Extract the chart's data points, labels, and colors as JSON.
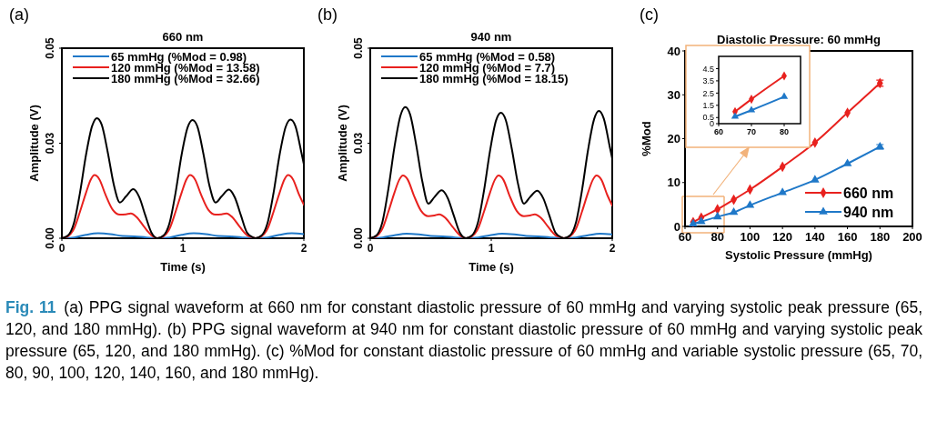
{
  "chart_data": [
    {
      "type": "line",
      "title": "660 nm",
      "xlabel": "Time (s)",
      "ylabel": "Amplitude (V)",
      "annotations": [
        "(a)"
      ],
      "xlim": [
        0,
        2
      ],
      "xticks": [
        0,
        1,
        2
      ],
      "ylim": [
        0,
        0.05
      ],
      "yticks": [
        {
          "value": 0,
          "label": "0.00"
        },
        {
          "value": 0.025,
          "label": "0.03"
        },
        {
          "value": 0.05,
          "label": "0.05"
        }
      ],
      "legend": "top",
      "series": [
        {
          "name": "65 mmHg (%Mod = 0.98)",
          "color": "#1f78c8",
          "x": [
            0,
            0.1,
            0.2,
            0.3,
            0.4,
            0.5,
            0.6,
            0.7,
            0.79,
            0.89,
            0.99,
            1.09,
            1.19,
            1.29,
            1.39,
            1.49,
            1.6,
            1.7,
            1.8,
            1.9,
            2
          ],
          "values": [
            0,
            0.0002,
            0.0009,
            0.0013,
            0.0011,
            0.0006,
            0.0005,
            0.0002,
            0,
            0.0002,
            0.0009,
            0.0013,
            0.0011,
            0.0006,
            0.0005,
            0.0002,
            0,
            0.0002,
            0.0009,
            0.0013,
            0.0011
          ]
        },
        {
          "name": "120 mmHg (%Mod = 13.58)",
          "color": "#e8211e",
          "x": [
            0,
            0.05,
            0.1,
            0.15,
            0.2,
            0.24,
            0.27,
            0.31,
            0.36,
            0.42,
            0.48,
            0.53,
            0.57,
            0.62,
            0.68,
            0.74,
            0.79,
            0.84,
            0.89,
            0.94,
            0.99,
            1.03,
            1.06,
            1.1,
            1.15,
            1.21,
            1.27,
            1.32,
            1.36,
            1.41,
            1.47,
            1.53,
            1.58,
            1.6,
            1.65,
            1.7,
            1.75,
            1.8,
            1.84,
            1.87,
            1.91,
            1.96,
            2
          ],
          "values": [
            0,
            0.0005,
            0.0025,
            0.007,
            0.012,
            0.0155,
            0.0166,
            0.0155,
            0.0115,
            0.0075,
            0.0062,
            0.0063,
            0.0065,
            0.0055,
            0.003,
            0.0008,
            0,
            0.0005,
            0.0025,
            0.007,
            0.012,
            0.0155,
            0.0166,
            0.0155,
            0.0115,
            0.0075,
            0.0062,
            0.0063,
            0.0065,
            0.0055,
            0.003,
            0.0008,
            0.0002,
            0,
            0.0005,
            0.0025,
            0.007,
            0.012,
            0.0155,
            0.0166,
            0.0155,
            0.0115,
            0.0088
          ]
        },
        {
          "name": "180 mmHg (%Mod = 32.66)",
          "color": "#000000",
          "x": [
            0,
            0.05,
            0.1,
            0.15,
            0.2,
            0.25,
            0.29,
            0.33,
            0.38,
            0.43,
            0.48,
            0.53,
            0.59,
            0.64,
            0.69,
            0.74,
            0.79,
            0.84,
            0.89,
            0.94,
            0.99,
            1.04,
            1.08,
            1.12,
            1.17,
            1.22,
            1.27,
            1.32,
            1.38,
            1.43,
            1.48,
            1.53,
            1.58,
            1.6,
            1.65,
            1.7,
            1.75,
            1.8,
            1.85,
            1.89,
            1.93,
            1.98,
            2
          ],
          "values": [
            0,
            0.0007,
            0.004,
            0.012,
            0.022,
            0.0295,
            0.0316,
            0.0298,
            0.0225,
            0.014,
            0.0094,
            0.011,
            0.0129,
            0.0108,
            0.006,
            0.0015,
            0,
            0.0007,
            0.004,
            0.012,
            0.022,
            0.0292,
            0.0311,
            0.0294,
            0.0222,
            0.0138,
            0.0094,
            0.011,
            0.0128,
            0.0107,
            0.006,
            0.0015,
            0.0002,
            0,
            0.0007,
            0.004,
            0.012,
            0.022,
            0.0293,
            0.0312,
            0.0295,
            0.0225,
            0.0195
          ]
        }
      ]
    },
    {
      "type": "line",
      "title": "940 nm",
      "xlabel": "Time (s)",
      "ylabel": "Amplitude (V)",
      "annotations": [
        "(b)"
      ],
      "xlim": [
        0,
        2
      ],
      "xticks": [
        0,
        1,
        2
      ],
      "ylim": [
        0,
        0.05
      ],
      "yticks": [
        {
          "value": 0,
          "label": "0.00"
        },
        {
          "value": 0.025,
          "label": "0.03"
        },
        {
          "value": 0.05,
          "label": "0.05"
        }
      ],
      "legend": "top",
      "series": [
        {
          "name": "65 mmHg (%Mod = 0.58)",
          "color": "#1f78c8",
          "x": [
            0,
            0.1,
            0.2,
            0.3,
            0.4,
            0.5,
            0.6,
            0.7,
            0.79,
            0.89,
            0.99,
            1.09,
            1.19,
            1.29,
            1.39,
            1.49,
            1.6,
            1.7,
            1.8,
            1.9,
            2
          ],
          "values": [
            0,
            0.0002,
            0.0008,
            0.0012,
            0.001,
            0.0006,
            0.0005,
            0.0002,
            0,
            0.0002,
            0.0008,
            0.0012,
            0.001,
            0.0006,
            0.0005,
            0.0002,
            0,
            0.0002,
            0.0008,
            0.0012,
            0.001
          ]
        },
        {
          "name": "120 mmHg (%Mod = 7.7)",
          "color": "#e8211e",
          "x": [
            0,
            0.05,
            0.1,
            0.15,
            0.2,
            0.24,
            0.27,
            0.31,
            0.36,
            0.42,
            0.48,
            0.53,
            0.57,
            0.62,
            0.68,
            0.74,
            0.79,
            0.84,
            0.89,
            0.94,
            0.99,
            1.03,
            1.06,
            1.1,
            1.15,
            1.21,
            1.27,
            1.32,
            1.36,
            1.41,
            1.47,
            1.53,
            1.58,
            1.6,
            1.65,
            1.7,
            1.75,
            1.8,
            1.84,
            1.87,
            1.91,
            1.96,
            2
          ],
          "values": [
            0,
            0.0005,
            0.0025,
            0.007,
            0.012,
            0.0154,
            0.0165,
            0.0154,
            0.0113,
            0.0072,
            0.0058,
            0.006,
            0.0063,
            0.0054,
            0.003,
            0.0008,
            0,
            0.0005,
            0.0025,
            0.007,
            0.012,
            0.0154,
            0.0165,
            0.0154,
            0.0113,
            0.0072,
            0.0058,
            0.006,
            0.0063,
            0.0054,
            0.003,
            0.0008,
            0.0002,
            0,
            0.0005,
            0.0025,
            0.007,
            0.012,
            0.0154,
            0.0165,
            0.0154,
            0.0113,
            0.0086
          ]
        },
        {
          "name": "180 mmHg (%Mod = 18.15)",
          "color": "#000000",
          "x": [
            0,
            0.05,
            0.1,
            0.15,
            0.2,
            0.25,
            0.29,
            0.33,
            0.38,
            0.43,
            0.48,
            0.53,
            0.59,
            0.64,
            0.69,
            0.74,
            0.79,
            0.84,
            0.89,
            0.94,
            0.99,
            1.04,
            1.08,
            1.12,
            1.17,
            1.22,
            1.27,
            1.32,
            1.38,
            1.43,
            1.48,
            1.53,
            1.58,
            1.6,
            1.65,
            1.7,
            1.75,
            1.8,
            1.85,
            1.89,
            1.93,
            1.98,
            2
          ],
          "values": [
            0,
            0.0007,
            0.0042,
            0.013,
            0.024,
            0.0323,
            0.0345,
            0.0325,
            0.0245,
            0.015,
            0.0091,
            0.0108,
            0.0126,
            0.0106,
            0.006,
            0.0015,
            0,
            0.0007,
            0.0041,
            0.0125,
            0.023,
            0.031,
            0.033,
            0.0311,
            0.0235,
            0.0145,
            0.0091,
            0.0108,
            0.0125,
            0.0105,
            0.006,
            0.0015,
            0.0002,
            0,
            0.0007,
            0.0041,
            0.0126,
            0.0232,
            0.0313,
            0.0335,
            0.0315,
            0.024,
            0.021
          ]
        }
      ]
    },
    {
      "type": "line",
      "title": "Diastolic Pressure: 60 mmHg",
      "xlabel": "Systolic Pressure (mmHg)",
      "ylabel": "%Mod",
      "annotations": [
        "(c)"
      ],
      "xlim": [
        60,
        200
      ],
      "xticks": [
        60,
        80,
        100,
        120,
        140,
        160,
        180,
        200
      ],
      "ylim": [
        0,
        40
      ],
      "yticks": [
        0,
        10,
        20,
        30,
        40
      ],
      "legend": "bottom right",
      "series": [
        {
          "name": "660 nm",
          "color": "#e8211e",
          "marker": "diamond",
          "x": [
            65,
            70,
            80,
            90,
            100,
            120,
            140,
            160,
            180
          ],
          "values": [
            0.98,
            2,
            3.9,
            6.1,
            8.4,
            13.58,
            19.1,
            25.9,
            32.66
          ],
          "errors": [
            null,
            null,
            null,
            null,
            null,
            null,
            null,
            null,
            0.7
          ]
        },
        {
          "name": "940 nm",
          "color": "#1f78c8",
          "marker": "triangle",
          "x": [
            65,
            70,
            80,
            90,
            100,
            120,
            140,
            160,
            180
          ],
          "values": [
            0.58,
            1.1,
            2.2,
            3.2,
            4.8,
            7.7,
            10.6,
            14.3,
            18.15
          ],
          "errors": [
            null,
            null,
            null,
            null,
            null,
            null,
            null,
            null,
            0.5
          ]
        }
      ]
    },
    {
      "type": "line",
      "xlim": [
        60,
        85
      ],
      "xticks": [
        60,
        70,
        80
      ],
      "ylim": [
        0,
        5.5
      ],
      "yticks": [
        0,
        0.5,
        1.5,
        2.5,
        3.5,
        4.5
      ],
      "series": [
        {
          "color": "#e8211e",
          "marker": "diamond",
          "x": [
            65,
            70,
            80
          ],
          "values": [
            0.98,
            2,
            3.9
          ]
        },
        {
          "color": "#1f78c8",
          "marker": "triangle",
          "x": [
            65,
            70,
            80
          ],
          "values": [
            0.58,
            1.1,
            2.2
          ]
        }
      ]
    },
    {
      "type": "other",
      "annotations": [
        "Fig. 11",
        "(a) PPG signal waveform at 660 nm for constant diastolic pressure of 60 mmHg and varying systolic peak pressure (65, 120, and 180 mmHg). (b) PPG signal waveform at 940 nm for constant diastolic pressure of 60 mmHg and varying systolic peak pressure (65, 120, and 180 mmHg). (c) %Mod for constant diastolic pressure of 60 mmHg and variable systolic pressure (65, 70, 80, 90, 100, 120, 140, 160, and 180 mmHg)."
      ]
    }
  ]
}
